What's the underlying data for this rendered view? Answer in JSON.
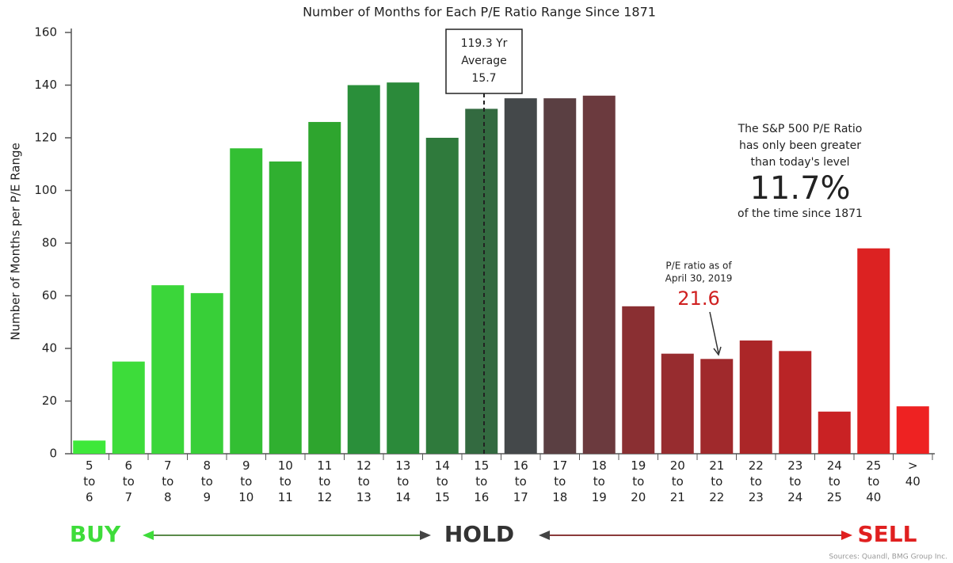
{
  "chart_data": {
    "type": "bar",
    "subtitle": "Number of Months for Each P/E Ratio Range Since 1871",
    "y_label": "Number of Months per P/E Range",
    "categories": [
      "5 to 6",
      "6 to 7",
      "7 to 8",
      "8 to 9",
      "9 to 10",
      "10 to 11",
      "11 to 12",
      "12 to 13",
      "13 to 14",
      "14 to 15",
      "15 to 16",
      "16 to 17",
      "17 to 18",
      "18 to 19",
      "19 to 20",
      "20 to 21",
      "21 to 22",
      "22 to 23",
      "23 to 24",
      "24 to 25",
      "25 to 40",
      "> 40"
    ],
    "values": [
      5,
      35,
      64,
      61,
      116,
      111,
      126,
      140,
      141,
      120,
      131,
      135,
      135,
      136,
      56,
      38,
      36,
      43,
      39,
      16,
      78,
      18
    ],
    "colors": [
      "#3ee83a",
      "#3ddc3a",
      "#3bd63a",
      "#38cf38",
      "#33bf33",
      "#30b030",
      "#2ea52e",
      "#2a8f3a",
      "#2b8a3a",
      "#2f7a3c",
      "#336a40",
      "#44484a",
      "#5a3f42",
      "#6b3a3e",
      "#8a2f32",
      "#972c2f",
      "#a0292c",
      "#ab2628",
      "#b92426",
      "#c92224",
      "#dc2222",
      "#ee2222"
    ],
    "ylim": [
      0,
      160
    ],
    "yticks": [
      0,
      20,
      40,
      60,
      80,
      100,
      120,
      140,
      160
    ],
    "grid": false,
    "average_box": [
      "119.3 Yr",
      "Average",
      "15.7"
    ],
    "note_lines": [
      "The S&P 500 P/E Ratio",
      "has only been greater",
      "than today's level"
    ],
    "note_big": "11.7%",
    "note_tail": "of the time since 1871",
    "current_lines": [
      "P/E ratio as of",
      "April 30, 2019"
    ],
    "current_value": "21.6",
    "buy": "BUY",
    "hold": "HOLD",
    "sell": "SELL",
    "source": "Sources: Quandl, BMG Group Inc."
  }
}
